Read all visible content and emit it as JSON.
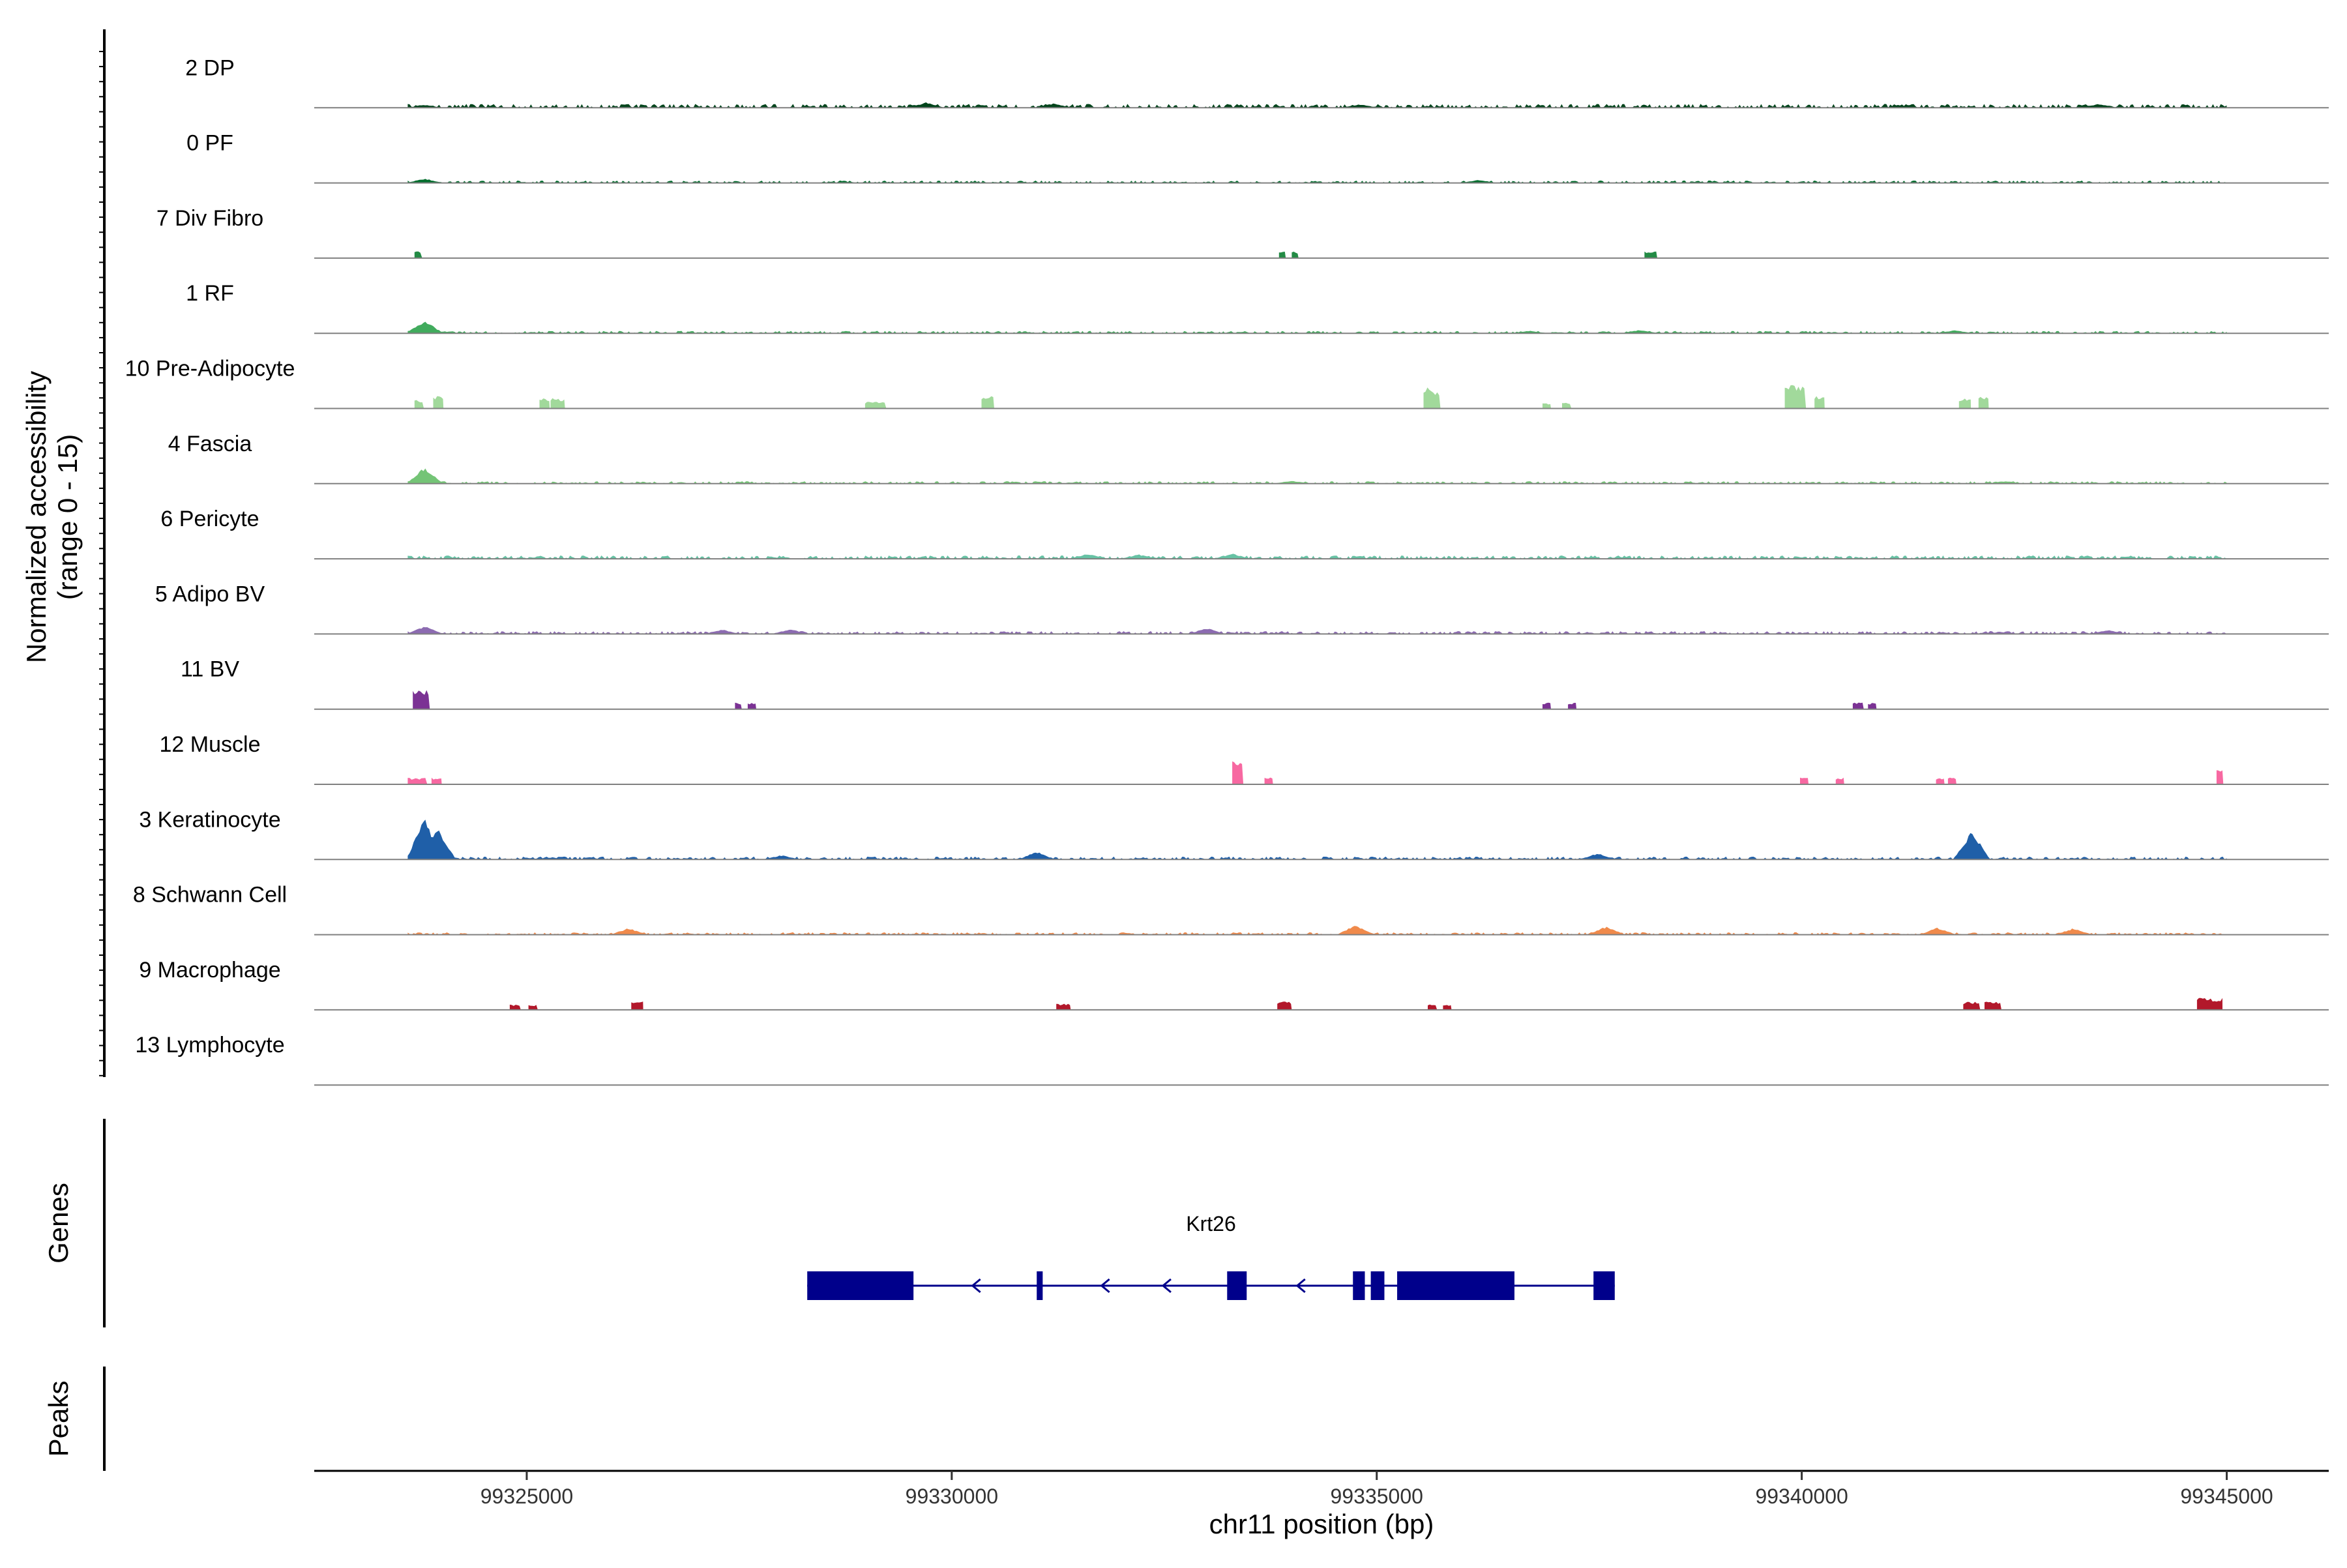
{
  "chart_data": {
    "type": "area",
    "ylabel_line1": "Normalized accessibility",
    "ylabel_line2": "(range 0 - 15)",
    "ylim": [
      0,
      15
    ],
    "xlabel": "chr11 position (bp)",
    "xlim": [
      99322500,
      99346200
    ],
    "xticks": [
      99325000,
      99330000,
      99335000,
      99340000,
      99345000
    ],
    "xtick_labels": [
      "99325000",
      "99330000",
      "99335000",
      "99340000",
      "99345000"
    ],
    "genes_label": "Genes",
    "peaks_label": "Peaks",
    "tracks": [
      {
        "label": "2 DP",
        "color": "#00441b",
        "regions": [
          [
            99323600,
            99345000,
            0.8
          ]
        ],
        "peaks": [
          [
            99329700,
            1.2
          ],
          [
            99331200,
            1.0
          ],
          [
            99323800,
            0.7
          ],
          [
            99334800,
            0.8
          ],
          [
            99343500,
            0.9
          ]
        ]
      },
      {
        "label": "0 PF",
        "color": "#006d2c",
        "regions": [
          [
            99323600,
            99345000,
            0.5
          ]
        ],
        "peaks": [
          [
            99323800,
            1.0
          ],
          [
            99336200,
            0.7
          ]
        ]
      },
      {
        "label": "7 Div Fibro",
        "color": "#238b45",
        "regions": [
          [
            99323680,
            99323770,
            1.4
          ],
          [
            99333850,
            99333930,
            1.4
          ],
          [
            99334000,
            99334080,
            1.4
          ],
          [
            99338150,
            99338300,
            1.4
          ]
        ],
        "peaks": []
      },
      {
        "label": "1 RF",
        "color": "#41ab5d",
        "regions": [
          [
            99323600,
            99345000,
            0.5
          ]
        ],
        "peaks": [
          [
            99323800,
            3.0
          ],
          [
            99338100,
            0.8
          ],
          [
            99336800,
            0.6
          ],
          [
            99341800,
            0.7
          ]
        ]
      },
      {
        "label": "10 Pre-Adipocyte",
        "color": "#a1d99b",
        "regions": [
          [
            99323680,
            99323790,
            1.8
          ],
          [
            99323900,
            99324020,
            2.6
          ],
          [
            99325150,
            99325270,
            2.2
          ],
          [
            99325280,
            99325450,
            2.2
          ],
          [
            99328980,
            99329230,
            1.4
          ],
          [
            99330350,
            99330500,
            2.8
          ],
          [
            99335550,
            99335750,
            3.5
          ],
          [
            99336950,
            99337050,
            1.2
          ],
          [
            99337180,
            99337290,
            1.2
          ],
          [
            99339800,
            99340050,
            5.0
          ],
          [
            99340150,
            99340270,
            2.8
          ],
          [
            99341850,
            99341990,
            2.2
          ],
          [
            99342080,
            99342200,
            2.8
          ]
        ],
        "peaks": [
          [
            99339880,
            5.5
          ],
          [
            99335600,
            4.8
          ]
        ]
      },
      {
        "label": "4 Fascia",
        "color": "#74c476",
        "regions": [
          [
            99323600,
            99345000,
            0.5
          ]
        ],
        "peaks": [
          [
            99323800,
            3.8
          ],
          [
            99334000,
            0.7
          ],
          [
            99342400,
            0.6
          ]
        ]
      },
      {
        "label": "6 Pericyte",
        "color": "#66c2a4",
        "regions": [
          [
            99323600,
            99345000,
            0.7
          ]
        ],
        "peaks": [
          [
            99331600,
            1.2
          ],
          [
            99332200,
            1.0
          ],
          [
            99333300,
            1.2
          ]
        ]
      },
      {
        "label": "5 Adipo BV",
        "color": "#8c6bb1",
        "regions": [
          [
            99323600,
            99345000,
            0.6
          ]
        ],
        "peaks": [
          [
            99323800,
            1.8
          ],
          [
            99327300,
            1.0
          ],
          [
            99328100,
            1.1
          ],
          [
            99333000,
            1.4
          ],
          [
            99343600,
            0.9
          ]
        ]
      },
      {
        "label": "11 BV",
        "color": "#7b3294",
        "regions": [
          [
            99323660,
            99323860,
            4.0
          ],
          [
            99327450,
            99327530,
            1.4
          ],
          [
            99327600,
            99327700,
            1.4
          ],
          [
            99336950,
            99337050,
            1.4
          ],
          [
            99337250,
            99337350,
            1.4
          ],
          [
            99340600,
            99340730,
            1.4
          ],
          [
            99340780,
            99340880,
            1.4
          ]
        ],
        "peaks": [
          [
            99323750,
            4.5
          ]
        ]
      },
      {
        "label": "12 Muscle",
        "color": "#f768a1",
        "regions": [
          [
            99323600,
            99323830,
            1.4
          ],
          [
            99323880,
            99324000,
            1.4
          ],
          [
            99333300,
            99333430,
            4.8
          ],
          [
            99333680,
            99333780,
            1.6
          ],
          [
            99339980,
            99340080,
            1.4
          ],
          [
            99340400,
            99340500,
            1.4
          ],
          [
            99341580,
            99341680,
            1.4
          ],
          [
            99341720,
            99341820,
            1.4
          ],
          [
            99344880,
            99344960,
            3.2
          ]
        ],
        "peaks": [
          [
            99333350,
            5.0
          ],
          [
            99344920,
            3.5
          ]
        ]
      },
      {
        "label": "3 Keratinocyte",
        "color": "#1f5fa8",
        "regions": [
          [
            99323600,
            99345000,
            0.6
          ]
        ],
        "peaks": [
          [
            99323800,
            9.5
          ],
          [
            99323950,
            7.0
          ],
          [
            99342000,
            6.5
          ],
          [
            99331000,
            1.8
          ],
          [
            99328000,
            1.0
          ],
          [
            99337600,
            1.4
          ]
        ]
      },
      {
        "label": "8 Schwann Cell",
        "color": "#f08a4b",
        "regions": [
          [
            99323600,
            99345000,
            0.5
          ]
        ],
        "peaks": [
          [
            99326200,
            1.5
          ],
          [
            99334750,
            2.2
          ],
          [
            99337700,
            1.9
          ],
          [
            99341600,
            1.6
          ],
          [
            99343200,
            1.5
          ]
        ]
      },
      {
        "label": "9 Macrophage",
        "color": "#b2182b",
        "regions": [
          [
            99324800,
            99324930,
            1.1
          ],
          [
            99325020,
            99325130,
            1.1
          ],
          [
            99326230,
            99326370,
            2.0
          ],
          [
            99331230,
            99331400,
            1.3
          ],
          [
            99333830,
            99334000,
            1.8
          ],
          [
            99335600,
            99335710,
            1.1
          ],
          [
            99335780,
            99335880,
            1.1
          ],
          [
            99341900,
            99342100,
            1.7
          ],
          [
            99342150,
            99342350,
            1.7
          ],
          [
            99344650,
            99344950,
            2.5
          ]
        ],
        "peaks": [
          [
            99344700,
            3.0
          ],
          [
            99342200,
            2.0
          ]
        ]
      },
      {
        "label": "13 Lymphocyte",
        "color": "#555555",
        "regions": [],
        "peaks": []
      }
    ],
    "gene": {
      "name": "Krt26",
      "strand": "-",
      "start": 99328300,
      "end": 99337800,
      "exons": [
        [
          99328300,
          99329550
        ],
        [
          99331000,
          99331070
        ],
        [
          99333240,
          99333470
        ],
        [
          99334720,
          99334860
        ],
        [
          99334930,
          99335090
        ],
        [
          99335240,
          99336620
        ],
        [
          99337550,
          99337800
        ]
      ],
      "color": "#00008b"
    }
  }
}
